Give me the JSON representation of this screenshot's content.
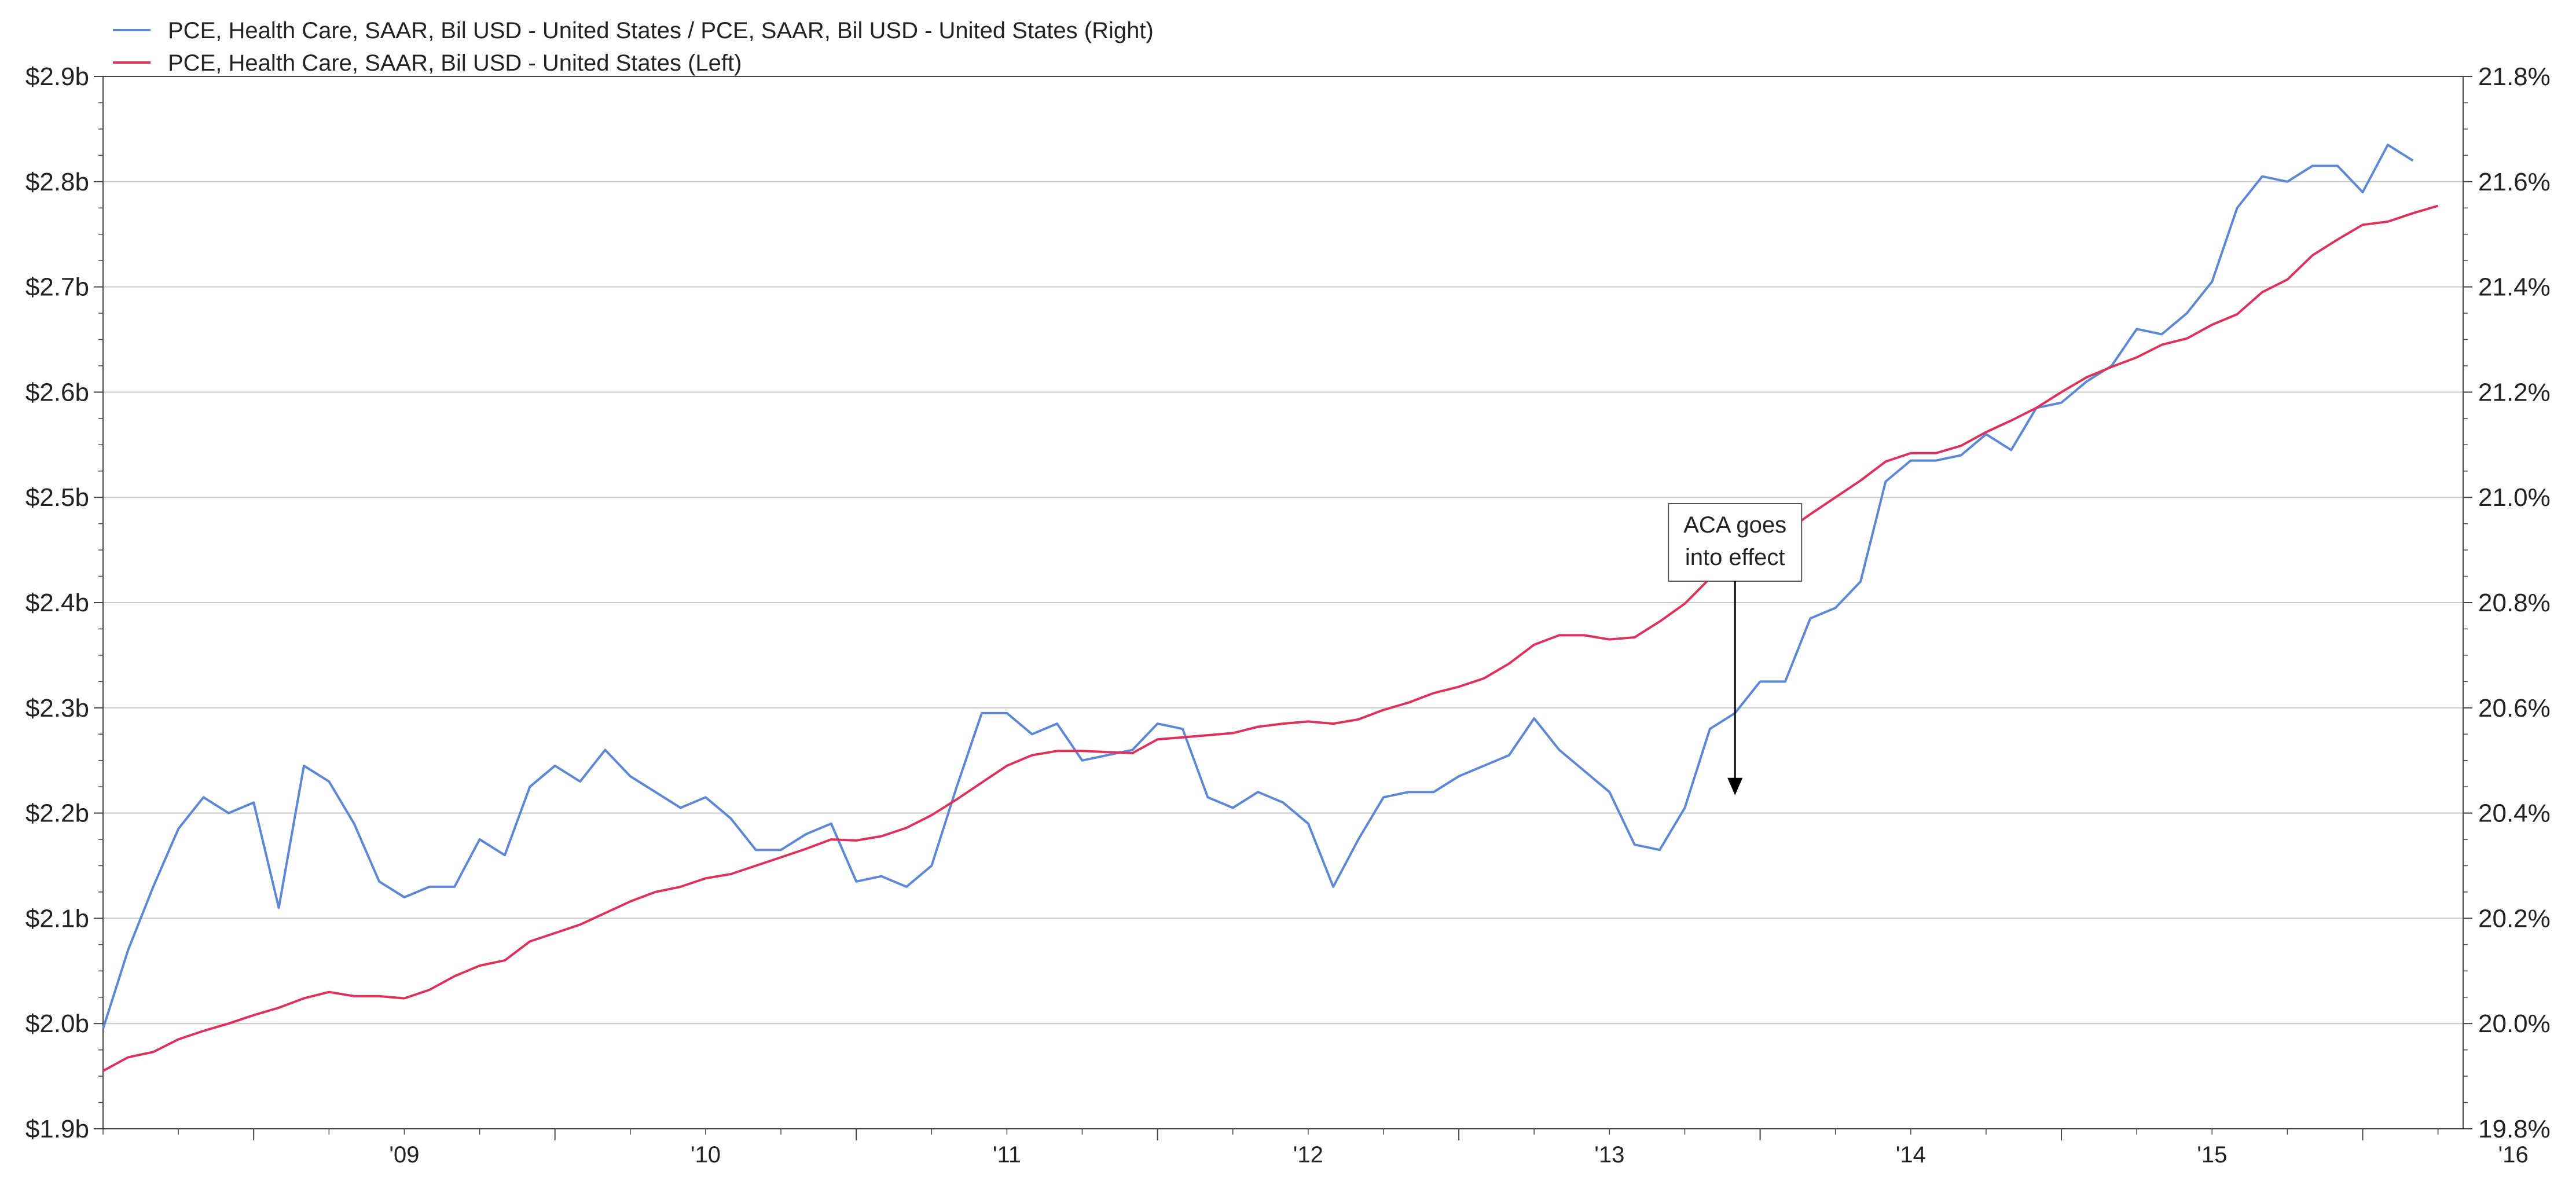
{
  "chart_data": {
    "type": "line",
    "title": "",
    "legend": {
      "placement": "top-left",
      "entries": [
        {
          "label": "PCE, Health Care, SAAR, Bil USD - United States / PCE, SAAR, Bil USD - United States  (Right)",
          "color": "#5b87d6"
        },
        {
          "label": "PCE, Health Care, SAAR, Bil USD - United States  (Left)",
          "color": "#e0305a"
        }
      ]
    },
    "x_axis": {
      "type": "date",
      "range": [
        "2008-07",
        "2016-05"
      ],
      "ticks": [
        {
          "label": "'09",
          "date": "2009-01"
        },
        {
          "label": "'10",
          "date": "2010-01"
        },
        {
          "label": "'11",
          "date": "2011-01"
        },
        {
          "label": "'12",
          "date": "2012-01"
        },
        {
          "label": "'13",
          "date": "2013-01"
        },
        {
          "label": "'14",
          "date": "2014-01"
        },
        {
          "label": "'15",
          "date": "2015-01"
        },
        {
          "label": "'16",
          "date": "2016-01"
        }
      ]
    },
    "y_left": {
      "range": [
        1.9,
        2.9
      ],
      "unit": "trillion USD",
      "ticks": [
        {
          "label": "$1.9b",
          "value": 1.9
        },
        {
          "label": "$2.0b",
          "value": 2.0
        },
        {
          "label": "$2.1b",
          "value": 2.1
        },
        {
          "label": "$2.2b",
          "value": 2.2
        },
        {
          "label": "$2.3b",
          "value": 2.3
        },
        {
          "label": "$2.4b",
          "value": 2.4
        },
        {
          "label": "$2.5b",
          "value": 2.5
        },
        {
          "label": "$2.6b",
          "value": 2.6
        },
        {
          "label": "$2.7b",
          "value": 2.7
        },
        {
          "label": "$2.8b",
          "value": 2.8
        },
        {
          "label": "$2.9b",
          "value": 2.9
        }
      ]
    },
    "y_right": {
      "range": [
        19.8,
        21.8
      ],
      "unit": "%",
      "ticks": [
        {
          "label": "19.8%",
          "value": 19.8
        },
        {
          "label": "20.0%",
          "value": 20.0
        },
        {
          "label": "20.2%",
          "value": 20.2
        },
        {
          "label": "20.4%",
          "value": 20.4
        },
        {
          "label": "20.6%",
          "value": 20.6
        },
        {
          "label": "20.8%",
          "value": 20.8
        },
        {
          "label": "21.0%",
          "value": 21.0
        },
        {
          "label": "21.2%",
          "value": 21.2
        },
        {
          "label": "21.4%",
          "value": 21.4
        },
        {
          "label": "21.6%",
          "value": 21.6
        },
        {
          "label": "21.8%",
          "value": 21.8
        }
      ]
    },
    "grid": true,
    "series": [
      {
        "name": "PCE, Health Care, SAAR, Bil USD - United States / PCE, SAAR, Bil USD - United States  (Right)",
        "axis": "right",
        "color": "#5b87d6",
        "points": [
          [
            "2008-07",
            19.99
          ],
          [
            "2008-08",
            20.14
          ],
          [
            "2008-09",
            20.26
          ],
          [
            "2008-10",
            20.37
          ],
          [
            "2008-11",
            20.43
          ],
          [
            "2008-12",
            20.4
          ],
          [
            "2009-01",
            20.42
          ],
          [
            "2009-02",
            20.22
          ],
          [
            "2009-03",
            20.49
          ],
          [
            "2009-04",
            20.46
          ],
          [
            "2009-05",
            20.38
          ],
          [
            "2009-06",
            20.27
          ],
          [
            "2009-07",
            20.24
          ],
          [
            "2009-08",
            20.26
          ],
          [
            "2009-09",
            20.26
          ],
          [
            "2009-10",
            20.35
          ],
          [
            "2009-11",
            20.32
          ],
          [
            "2009-12",
            20.45
          ],
          [
            "2010-01",
            20.49
          ],
          [
            "2010-02",
            20.46
          ],
          [
            "2010-03",
            20.52
          ],
          [
            "2010-04",
            20.47
          ],
          [
            "2010-05",
            20.44
          ],
          [
            "2010-06",
            20.41
          ],
          [
            "2010-07",
            20.43
          ],
          [
            "2010-08",
            20.39
          ],
          [
            "2010-09",
            20.33
          ],
          [
            "2010-10",
            20.33
          ],
          [
            "2010-11",
            20.36
          ],
          [
            "2010-12",
            20.38
          ],
          [
            "2011-01",
            20.27
          ],
          [
            "2011-02",
            20.28
          ],
          [
            "2011-03",
            20.26
          ],
          [
            "2011-04",
            20.3
          ],
          [
            "2011-05",
            20.45
          ],
          [
            "2011-06",
            20.59
          ],
          [
            "2011-07",
            20.59
          ],
          [
            "2011-08",
            20.55
          ],
          [
            "2011-09",
            20.57
          ],
          [
            "2011-10",
            20.5
          ],
          [
            "2011-11",
            20.51
          ],
          [
            "2011-12",
            20.52
          ],
          [
            "2012-01",
            20.57
          ],
          [
            "2012-02",
            20.56
          ],
          [
            "2012-03",
            20.43
          ],
          [
            "2012-04",
            20.41
          ],
          [
            "2012-05",
            20.44
          ],
          [
            "2012-06",
            20.42
          ],
          [
            "2012-07",
            20.38
          ],
          [
            "2012-08",
            20.26
          ],
          [
            "2012-09",
            20.35
          ],
          [
            "2012-10",
            20.43
          ],
          [
            "2012-11",
            20.44
          ],
          [
            "2012-12",
            20.44
          ],
          [
            "2013-01",
            20.47
          ],
          [
            "2013-02",
            20.49
          ],
          [
            "2013-03",
            20.51
          ],
          [
            "2013-04",
            20.58
          ],
          [
            "2013-05",
            20.52
          ],
          [
            "2013-06",
            20.48
          ],
          [
            "2013-07",
            20.44
          ],
          [
            "2013-08",
            20.34
          ],
          [
            "2013-09",
            20.33
          ],
          [
            "2013-10",
            20.41
          ],
          [
            "2013-11",
            20.56
          ],
          [
            "2013-12",
            20.59
          ],
          [
            "2014-01",
            20.65
          ],
          [
            "2014-02",
            20.65
          ],
          [
            "2014-03",
            20.77
          ],
          [
            "2014-04",
            20.79
          ],
          [
            "2014-05",
            20.84
          ],
          [
            "2014-06",
            21.03
          ],
          [
            "2014-07",
            21.07
          ],
          [
            "2014-08",
            21.07
          ],
          [
            "2014-09",
            21.08
          ],
          [
            "2014-10",
            21.12
          ],
          [
            "2014-11",
            21.09
          ],
          [
            "2014-12",
            21.17
          ],
          [
            "2015-01",
            21.18
          ],
          [
            "2015-02",
            21.22
          ],
          [
            "2015-03",
            21.25
          ],
          [
            "2015-04",
            21.32
          ],
          [
            "2015-05",
            21.31
          ],
          [
            "2015-06",
            21.35
          ],
          [
            "2015-07",
            21.41
          ],
          [
            "2015-08",
            21.55
          ],
          [
            "2015-09",
            21.61
          ],
          [
            "2015-10",
            21.6
          ],
          [
            "2015-11",
            21.63
          ],
          [
            "2015-12",
            21.63
          ],
          [
            "2016-01",
            21.58
          ],
          [
            "2016-02",
            21.67
          ],
          [
            "2016-03",
            21.64
          ]
        ]
      },
      {
        "name": "PCE, Health Care, SAAR, Bil USD - United States  (Left)",
        "axis": "left",
        "color": "#e0305a",
        "points": [
          [
            "2008-07",
            1.955
          ],
          [
            "2008-08",
            1.968
          ],
          [
            "2008-09",
            1.973
          ],
          [
            "2008-10",
            1.985
          ],
          [
            "2008-11",
            1.993
          ],
          [
            "2008-12",
            2.0
          ],
          [
            "2009-01",
            2.008
          ],
          [
            "2009-02",
            2.015
          ],
          [
            "2009-03",
            2.024
          ],
          [
            "2009-04",
            2.03
          ],
          [
            "2009-05",
            2.026
          ],
          [
            "2009-06",
            2.026
          ],
          [
            "2009-07",
            2.024
          ],
          [
            "2009-08",
            2.032
          ],
          [
            "2009-09",
            2.045
          ],
          [
            "2009-10",
            2.055
          ],
          [
            "2009-11",
            2.06
          ],
          [
            "2009-12",
            2.078
          ],
          [
            "2010-01",
            2.086
          ],
          [
            "2010-02",
            2.094
          ],
          [
            "2010-03",
            2.105
          ],
          [
            "2010-04",
            2.116
          ],
          [
            "2010-05",
            2.125
          ],
          [
            "2010-06",
            2.13
          ],
          [
            "2010-07",
            2.138
          ],
          [
            "2010-08",
            2.142
          ],
          [
            "2010-09",
            2.15
          ],
          [
            "2010-10",
            2.158
          ],
          [
            "2010-11",
            2.166
          ],
          [
            "2010-12",
            2.175
          ],
          [
            "2011-01",
            2.174
          ],
          [
            "2011-02",
            2.178
          ],
          [
            "2011-03",
            2.186
          ],
          [
            "2011-04",
            2.198
          ],
          [
            "2011-05",
            2.213
          ],
          [
            "2011-06",
            2.229
          ],
          [
            "2011-07",
            2.245
          ],
          [
            "2011-08",
            2.255
          ],
          [
            "2011-09",
            2.259
          ],
          [
            "2011-10",
            2.259
          ],
          [
            "2011-11",
            2.258
          ],
          [
            "2011-12",
            2.257
          ],
          [
            "2012-01",
            2.27
          ],
          [
            "2012-02",
            2.272
          ],
          [
            "2012-03",
            2.274
          ],
          [
            "2012-04",
            2.276
          ],
          [
            "2012-05",
            2.282
          ],
          [
            "2012-06",
            2.285
          ],
          [
            "2012-07",
            2.287
          ],
          [
            "2012-08",
            2.285
          ],
          [
            "2012-09",
            2.289
          ],
          [
            "2012-10",
            2.298
          ],
          [
            "2012-11",
            2.305
          ],
          [
            "2012-12",
            2.314
          ],
          [
            "2013-01",
            2.32
          ],
          [
            "2013-02",
            2.328
          ],
          [
            "2013-03",
            2.342
          ],
          [
            "2013-04",
            2.36
          ],
          [
            "2013-05",
            2.369
          ],
          [
            "2013-06",
            2.369
          ],
          [
            "2013-07",
            2.365
          ],
          [
            "2013-08",
            2.367
          ],
          [
            "2013-09",
            2.382
          ],
          [
            "2013-10",
            2.399
          ],
          [
            "2013-11",
            2.423
          ],
          [
            "2013-12",
            2.44
          ],
          [
            "2014-01",
            2.451
          ],
          [
            "2014-02",
            2.467
          ],
          [
            "2014-03",
            2.484
          ],
          [
            "2014-04",
            2.5
          ],
          [
            "2014-05",
            2.516
          ],
          [
            "2014-06",
            2.534
          ],
          [
            "2014-07",
            2.542
          ],
          [
            "2014-08",
            2.542
          ],
          [
            "2014-09",
            2.549
          ],
          [
            "2014-10",
            2.562
          ],
          [
            "2014-11",
            2.573
          ],
          [
            "2014-12",
            2.585
          ],
          [
            "2015-01",
            2.6
          ],
          [
            "2015-02",
            2.614
          ],
          [
            "2015-03",
            2.624
          ],
          [
            "2015-04",
            2.633
          ],
          [
            "2015-05",
            2.645
          ],
          [
            "2015-06",
            2.651
          ],
          [
            "2015-07",
            2.664
          ],
          [
            "2015-08",
            2.674
          ],
          [
            "2015-09",
            2.695
          ],
          [
            "2015-10",
            2.707
          ],
          [
            "2015-11",
            2.73
          ],
          [
            "2015-12",
            2.745
          ],
          [
            "2016-01",
            2.759
          ],
          [
            "2016-02",
            2.762
          ],
          [
            "2016-03",
            2.77
          ],
          [
            "2016-04",
            2.777
          ]
        ]
      }
    ],
    "annotations": [
      {
        "lines": [
          "ACA goes",
          "into effect"
        ],
        "target_date": "2013-12",
        "target_value_left": 2.217
      }
    ]
  }
}
